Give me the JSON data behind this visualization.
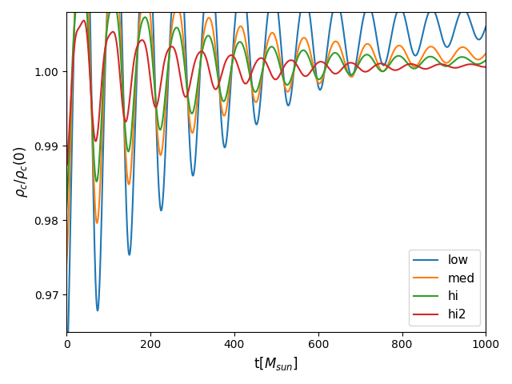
{
  "title": "",
  "xlabel": "t[$M_{sun}$]",
  "ylabel": "$\\rho_c/\\rho_c(0)$",
  "xlim": [
    0,
    1000
  ],
  "ylim": [
    0.965,
    1.008
  ],
  "legend_labels": [
    "low",
    "med",
    "hi",
    "hi2"
  ],
  "colors": [
    "#1f77b4",
    "#ff7f0e",
    "#2ca02c",
    "#d62728"
  ],
  "linewidth": 1.5,
  "figsize": [
    6.4,
    4.8
  ],
  "dpi": 100
}
